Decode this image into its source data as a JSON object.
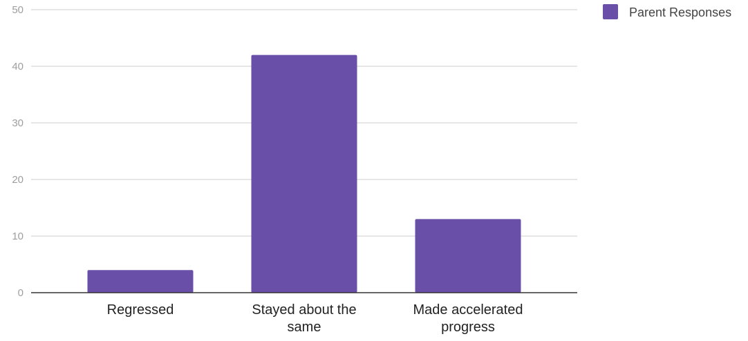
{
  "chart_data": {
    "type": "bar",
    "categories": [
      "Regressed",
      "Stayed about the same",
      "Made accelerated progress"
    ],
    "category_lines": [
      [
        "Regressed"
      ],
      [
        "Stayed about the",
        "same"
      ],
      [
        "Made accelerated",
        "progress"
      ]
    ],
    "series": [
      {
        "name": "Parent Responses",
        "values": [
          4,
          42,
          13
        ],
        "color": "#6a4fa8"
      }
    ],
    "ylim": [
      0,
      50
    ],
    "yticks": [
      0,
      10,
      20,
      30,
      40,
      50
    ],
    "grid": true,
    "legend_position": "top-right",
    "title": "",
    "xlabel": "",
    "ylabel": ""
  }
}
